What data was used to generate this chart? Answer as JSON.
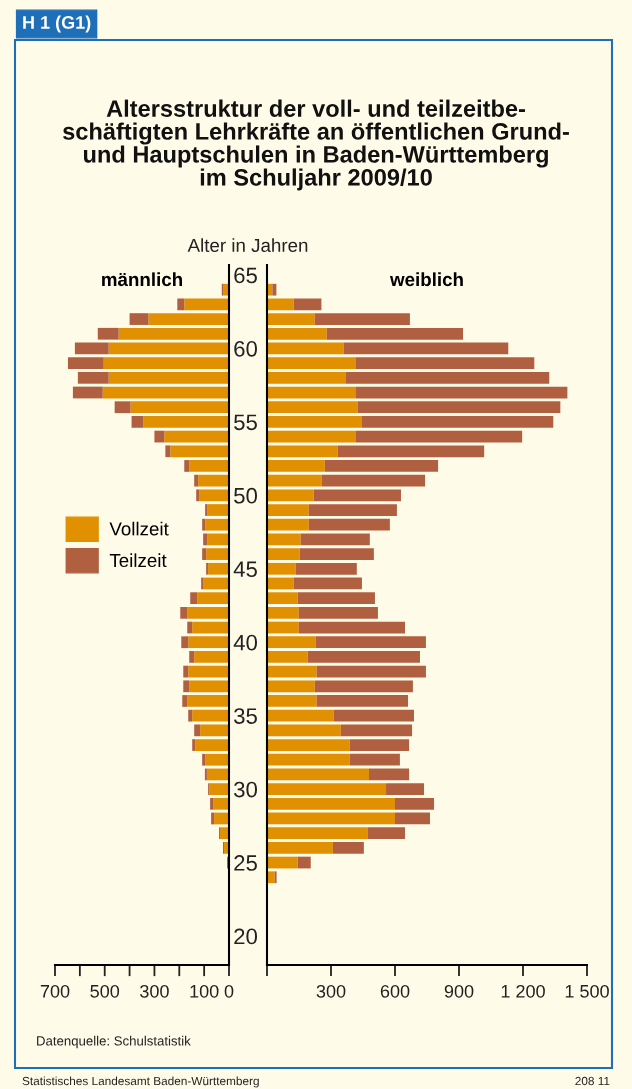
{
  "chart_data": [
    {
      "type": "other",
      "title": "Altersstruktur der voll- und teilzeitbe-\nschäftigten Lehrkräfte an öffentlichen Grund-\nund Hauptschulen in Baden-Württemberg\nim Schuljahr 2009/10",
      "annotations": [
        "H 1 (G1)",
        "Datenquelle: Schulstatistik",
        "Statistisches Landesamt Baden-Württemberg",
        "208 11"
      ]
    },
    {
      "type": "bar",
      "orientation": "horizontal",
      "stacked": true,
      "title": "männlich",
      "ylabel": "Alter in Jahren",
      "categories": [
        "65",
        null,
        null,
        null,
        null,
        "60",
        null,
        null,
        null,
        null,
        "55",
        null,
        null,
        null,
        null,
        "50",
        null,
        null,
        null,
        null,
        "45",
        null,
        null,
        null,
        null,
        "40",
        null,
        null,
        null,
        null,
        "35",
        null,
        null,
        null,
        null,
        "30",
        null,
        null,
        null,
        null,
        "25",
        null,
        null,
        null,
        null,
        "20"
      ],
      "xlim": [
        700,
        0
      ],
      "xticks": [
        700,
        {
          "value": 600,
          "label": null
        },
        500,
        {
          "value": 400,
          "label": null
        },
        300,
        {
          "value": 200,
          "label": null
        },
        100,
        0
      ],
      "legend": "center left",
      "grid": false,
      "series": [
        {
          "name": "Vollzeit",
          "color": "#e09000",
          "values": [
            0,
            24,
            180,
            324,
            444,
            484,
            504,
            484,
            508,
            396,
            344,
            260,
            236,
            160,
            124,
            120,
            88,
            96,
            88,
            92,
            84,
            104,
            128,
            168,
            148,
            164,
            140,
            164,
            160,
            168,
            148,
            116,
            136,
            96,
            89,
            80,
            64,
            60,
            36,
            20,
            3,
            null,
            0,
            0,
            0,
            0
          ]
        },
        {
          "name": "Teilzeit",
          "color": "#b06040",
          "values": [
            0,
            5,
            28,
            76,
            84,
            136,
            144,
            124,
            120,
            64,
            48,
            40,
            20,
            20,
            16,
            12,
            8,
            12,
            16,
            16,
            8,
            8,
            28,
            28,
            20,
            28,
            20,
            20,
            24,
            20,
            16,
            24,
            12,
            12,
            8,
            4,
            12,
            12,
            4,
            4,
            5,
            0,
            0,
            0,
            0,
            0
          ]
        }
      ]
    },
    {
      "type": "bar",
      "orientation": "horizontal",
      "stacked": true,
      "title": "weiblich",
      "tick_labels": "x",
      "categories": [
        "65",
        null,
        null,
        null,
        null,
        "60",
        null,
        null,
        null,
        null,
        "55",
        null,
        null,
        null,
        null,
        "50",
        null,
        null,
        null,
        null,
        "45",
        null,
        null,
        null,
        null,
        "40",
        null,
        null,
        null,
        null,
        "35",
        null,
        null,
        null,
        null,
        "30",
        null,
        null,
        null,
        null,
        "25",
        null,
        null,
        null,
        null,
        "20"
      ],
      "xlim": [
        0,
        1500
      ],
      "xticks": [
        {
          "value": 0,
          "label": null
        },
        300,
        600,
        900,
        {
          "value": 1200,
          "label": "1 200"
        },
        {
          "value": 1500,
          "label": "1 500"
        }
      ],
      "grid": false,
      "series": [
        {
          "color": "#e09000",
          "values": [
            0,
            25,
            125,
            224,
            280,
            360,
            417,
            370,
            417,
            426,
            445,
            417,
            332,
            271,
            257,
            219,
            196,
            196,
            158,
            153,
            135,
            125,
            144,
            149,
            149,
            229,
            191,
            233,
            224,
            233,
            313,
            346,
            388,
            388,
            478,
            558,
            600,
            600,
            473,
            309,
            144,
            36,
            null,
            0,
            null,
            0
          ]
        },
        {
          "color": "#b06040",
          "values": [
            0,
            19,
            130,
            446,
            639,
            771,
            836,
            953,
            991,
            949,
            897,
            779,
            686,
            531,
            484,
            409,
            413,
            380,
            324,
            348,
            286,
            320,
            362,
            371,
            498,
            516,
            526,
            512,
            460,
            428,
            376,
            334,
            278,
            235,
            188,
            178,
            183,
            164,
            174,
            145,
            61,
            9,
            0,
            0,
            0,
            0
          ]
        }
      ]
    }
  ]
}
